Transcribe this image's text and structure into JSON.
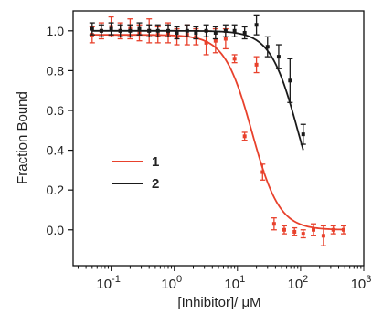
{
  "chart_data": {
    "type": "scatter",
    "xlabel": "[Inhibitor]/ μM",
    "ylabel": "Fraction Bound",
    "xscale": "log",
    "xlim": [
      0.025,
      1000
    ],
    "ylim": [
      -0.18,
      1.1
    ],
    "y_ticks": [
      0.0,
      0.2,
      0.4,
      0.6,
      0.8,
      1.0
    ],
    "y_tick_labels": [
      "0.0",
      "0.2",
      "0.4",
      "0.6",
      "0.8",
      "1.0"
    ],
    "x_ticks": [
      0.1,
      1,
      10,
      100,
      1000
    ],
    "x_tick_labels": [
      {
        "base": "10",
        "exp": "-1"
      },
      {
        "base": "10",
        "exp": "0"
      },
      {
        "base": "10",
        "exp": "1"
      },
      {
        "base": "10",
        "exp": "2"
      },
      {
        "base": "10",
        "exp": "3"
      }
    ],
    "grid": false,
    "legend_position": "left-middle",
    "series": [
      {
        "name": "1",
        "color": "#e8412c",
        "ic50": 17,
        "hill": 2.0,
        "top": 0.98,
        "bottom": 0.0,
        "points": [
          {
            "x": 0.05,
            "y": 0.98,
            "err": 0.04
          },
          {
            "x": 0.07,
            "y": 1.0,
            "err": 0.04
          },
          {
            "x": 0.1,
            "y": 1.02,
            "err": 0.05
          },
          {
            "x": 0.14,
            "y": 1.0,
            "err": 0.04
          },
          {
            "x": 0.2,
            "y": 1.01,
            "err": 0.05
          },
          {
            "x": 0.28,
            "y": 0.99,
            "err": 0.04
          },
          {
            "x": 0.4,
            "y": 1.0,
            "err": 0.06
          },
          {
            "x": 0.55,
            "y": 0.98,
            "err": 0.04
          },
          {
            "x": 0.8,
            "y": 0.99,
            "err": 0.05
          },
          {
            "x": 1.1,
            "y": 0.97,
            "err": 0.04
          },
          {
            "x": 1.6,
            "y": 0.98,
            "err": 0.05
          },
          {
            "x": 2.2,
            "y": 0.97,
            "err": 0.04
          },
          {
            "x": 3.2,
            "y": 0.94,
            "err": 0.06
          },
          {
            "x": 4.5,
            "y": 0.95,
            "err": 0.06
          },
          {
            "x": 6.5,
            "y": 0.96,
            "err": 0.05
          },
          {
            "x": 9,
            "y": 0.86,
            "err": 0.02
          },
          {
            "x": 13,
            "y": 0.47,
            "err": 0.02
          },
          {
            "x": 20,
            "y": 0.83,
            "err": 0.04
          },
          {
            "x": 25,
            "y": 0.29,
            "err": 0.04
          },
          {
            "x": 38,
            "y": 0.03,
            "err": 0.03
          },
          {
            "x": 55,
            "y": 0.0,
            "err": 0.02
          },
          {
            "x": 80,
            "y": -0.01,
            "err": 0.02
          },
          {
            "x": 110,
            "y": -0.02,
            "err": 0.02
          },
          {
            "x": 160,
            "y": 0.0,
            "err": 0.03
          },
          {
            "x": 230,
            "y": -0.03,
            "err": 0.05
          },
          {
            "x": 330,
            "y": 0.0,
            "err": 0.02
          },
          {
            "x": 480,
            "y": 0.0,
            "err": 0.02
          }
        ]
      },
      {
        "name": "2",
        "color": "#1a1a1a",
        "ic50": 90,
        "hill": 2.0,
        "top": 1.0,
        "bottom": 0.0,
        "points": [
          {
            "x": 0.05,
            "y": 1.01,
            "err": 0.03
          },
          {
            "x": 0.07,
            "y": 1.0,
            "err": 0.03
          },
          {
            "x": 0.1,
            "y": 1.01,
            "err": 0.03
          },
          {
            "x": 0.14,
            "y": 1.0,
            "err": 0.03
          },
          {
            "x": 0.2,
            "y": 1.0,
            "err": 0.03
          },
          {
            "x": 0.28,
            "y": 1.01,
            "err": 0.03
          },
          {
            "x": 0.4,
            "y": 1.0,
            "err": 0.03
          },
          {
            "x": 0.55,
            "y": 1.0,
            "err": 0.03
          },
          {
            "x": 0.8,
            "y": 1.0,
            "err": 0.03
          },
          {
            "x": 1.1,
            "y": 0.99,
            "err": 0.03
          },
          {
            "x": 1.6,
            "y": 1.0,
            "err": 0.03
          },
          {
            "x": 2.2,
            "y": 0.99,
            "err": 0.03
          },
          {
            "x": 3.2,
            "y": 1.0,
            "err": 0.03
          },
          {
            "x": 4.5,
            "y": 0.99,
            "err": 0.03
          },
          {
            "x": 6.5,
            "y": 1.0,
            "err": 0.03
          },
          {
            "x": 9,
            "y": 1.0,
            "err": 0.03
          },
          {
            "x": 13,
            "y": 0.99,
            "err": 0.03
          },
          {
            "x": 20,
            "y": 1.03,
            "err": 0.05
          },
          {
            "x": 30,
            "y": 0.92,
            "err": 0.05
          },
          {
            "x": 45,
            "y": 0.87,
            "err": 0.06
          },
          {
            "x": 68,
            "y": 0.75,
            "err": 0.11
          },
          {
            "x": 110,
            "y": 0.48,
            "err": 0.05
          }
        ]
      }
    ]
  }
}
